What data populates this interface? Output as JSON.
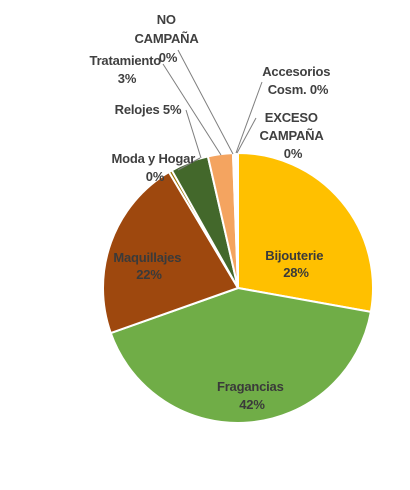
{
  "chart_data": {
    "type": "pie",
    "slices": [
      {
        "label": "Bijouterie",
        "value": 28,
        "value_text": "28%",
        "color": "#FFC000"
      },
      {
        "label": "Fragancias",
        "value": 42,
        "value_text": "42%",
        "color": "#70AD47"
      },
      {
        "label": "Maquillajes",
        "value": 22,
        "value_text": "22%",
        "color": "#9E480E"
      },
      {
        "label": "Moda y Hogar",
        "value": 0.4,
        "value_text": "0%",
        "color": "#997300"
      },
      {
        "label": "Relojes",
        "value": 4.6,
        "value_text": "5%",
        "color": "#43682B"
      },
      {
        "label": "Tratamiento",
        "value": 3,
        "value_text": "3%",
        "color": "#F4A460"
      },
      {
        "label": "NO CAMPAÑA",
        "value": 0.2,
        "value_text": "0%",
        "color": "#5B9BD5"
      },
      {
        "label": "Accesorios Cosm.",
        "value": 0.2,
        "value_text": "0%",
        "color": "#264478"
      },
      {
        "label": "EXCESO CAMPAÑA",
        "value": 0.2,
        "value_text": "0%",
        "color": "#A5A5A5"
      }
    ],
    "label_texts": {
      "bijouterie": [
        "Bijouterie",
        "28%"
      ],
      "fragancias": [
        "Fragancias",
        "42%"
      ],
      "maquillajes": [
        "Maquillajes",
        "22%"
      ],
      "moda": [
        "Moda y Hogar",
        "0%"
      ],
      "relojes": [
        "Relojes 5%"
      ],
      "tratamiento": [
        "Tratamiento",
        "3%"
      ],
      "no_campana": [
        "NO",
        "CAMPAÑA",
        "0%"
      ],
      "accesorios": [
        "Accesorios",
        "Cosm. 0%"
      ],
      "exceso": [
        "EXCESO",
        "CAMPAÑA",
        "0%"
      ]
    },
    "legend": "none"
  }
}
